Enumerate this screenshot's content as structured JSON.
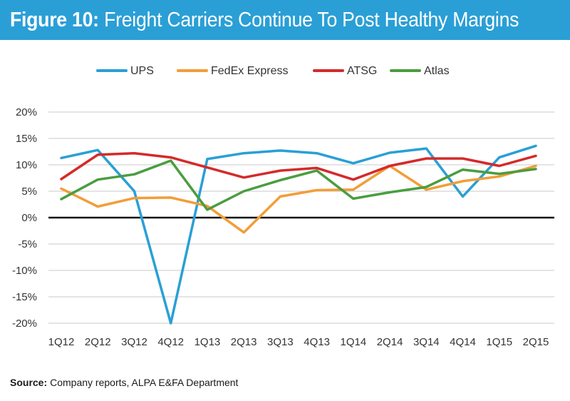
{
  "header": {
    "figure_label": "Figure 10:",
    "title": "Freight Carriers Continue To Post Healthy Margins"
  },
  "footer": {
    "source_label": "Source:",
    "source_text": "Company reports, ALPA E&FA Department"
  },
  "chart_data": {
    "type": "line",
    "title": "Freight Carriers Continue To Post Healthy Margins",
    "xlabel": "",
    "ylabel": "",
    "categories": [
      "1Q12",
      "2Q12",
      "3Q12",
      "4Q12",
      "1Q13",
      "2Q13",
      "3Q13",
      "4Q13",
      "1Q14",
      "2Q14",
      "3Q14",
      "4Q14",
      "1Q15",
      "2Q15"
    ],
    "ylim": [
      -20,
      20
    ],
    "yticks": [
      20,
      15,
      10,
      5,
      0,
      -5,
      -10,
      -15,
      -20
    ],
    "ytick_labels": [
      "20%",
      "15%",
      "10%",
      "5%",
      "0%",
      "-5%",
      "-10%",
      "-15%",
      "-20%"
    ],
    "grid": true,
    "legend_position": "top",
    "series": [
      {
        "name": "UPS",
        "color": "#2a9fd6",
        "values": [
          11.3,
          12.8,
          5.0,
          -20.0,
          11.1,
          12.2,
          12.7,
          12.2,
          10.3,
          12.3,
          13.1,
          4.0,
          11.4,
          13.6
        ]
      },
      {
        "name": "FedEx Express",
        "color": "#f29d38",
        "values": [
          5.5,
          2.1,
          3.7,
          3.8,
          2.2,
          -2.8,
          4.0,
          5.2,
          5.3,
          9.8,
          5.3,
          6.9,
          7.8,
          9.8
        ]
      },
      {
        "name": "ATSG",
        "color": "#d42a2a",
        "values": [
          7.3,
          11.9,
          12.2,
          11.4,
          9.5,
          7.6,
          8.9,
          9.4,
          7.2,
          9.8,
          11.2,
          11.2,
          9.8,
          11.7
        ]
      },
      {
        "name": "Atlas",
        "color": "#4a9d3f",
        "values": [
          3.5,
          7.2,
          8.2,
          10.8,
          1.5,
          5.0,
          7.1,
          8.9,
          3.6,
          4.8,
          5.8,
          9.1,
          8.3,
          9.2
        ]
      }
    ]
  }
}
